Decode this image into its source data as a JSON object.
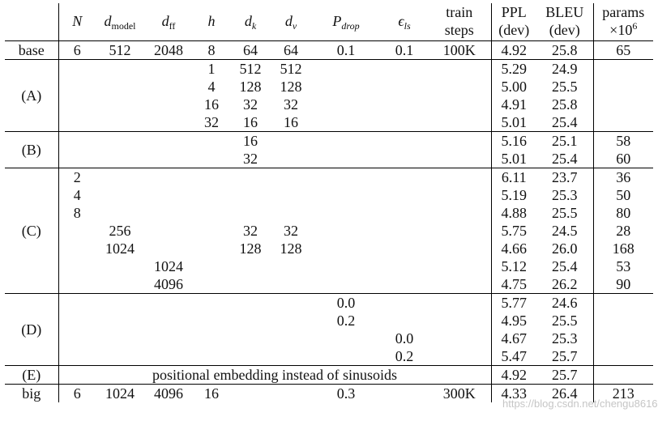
{
  "headers": {
    "N": "N",
    "d_model_base": "d",
    "d_model_sub": "model",
    "d_ff_base": "d",
    "d_ff_sub": "ff",
    "h": "h",
    "d_k_base": "d",
    "d_k_sub": "k",
    "d_v_base": "d",
    "d_v_sub": "v",
    "p_drop_base": "P",
    "p_drop_sub": "drop",
    "eps_ls_base": "ϵ",
    "eps_ls_sub": "ls",
    "train_1": "train",
    "train_2": "steps",
    "ppl_1": "PPL",
    "ppl_2": "(dev)",
    "bleu_1": "BLEU",
    "bleu_2": "(dev)",
    "params_1": "params",
    "params_2": "×10",
    "params_exp": "6"
  },
  "groups": [
    {
      "id": "base",
      "label": "base",
      "rows": [
        {
          "N": "6",
          "d_model": "512",
          "d_ff": "2048",
          "h": "8",
          "d_k": "64",
          "d_v": "64",
          "p_drop": "0.1",
          "eps_ls": "0.1",
          "steps": "100K",
          "ppl": "4.92",
          "bleu": "25.8",
          "params": "65"
        }
      ]
    },
    {
      "id": "A",
      "label": "(A)",
      "rows": [
        {
          "h": "1",
          "d_k": "512",
          "d_v": "512",
          "ppl": "5.29",
          "bleu": "24.9"
        },
        {
          "h": "4",
          "d_k": "128",
          "d_v": "128",
          "ppl": "5.00",
          "bleu": "25.5"
        },
        {
          "h": "16",
          "d_k": "32",
          "d_v": "32",
          "ppl": "4.91",
          "bleu": "25.8"
        },
        {
          "h": "32",
          "d_k": "16",
          "d_v": "16",
          "ppl": "5.01",
          "bleu": "25.4"
        }
      ]
    },
    {
      "id": "B",
      "label": "(B)",
      "rows": [
        {
          "d_k": "16",
          "ppl": "5.16",
          "bleu": "25.1",
          "params": "58"
        },
        {
          "d_k": "32",
          "ppl": "5.01",
          "bleu": "25.4",
          "params": "60"
        }
      ]
    },
    {
      "id": "C",
      "label": "(C)",
      "rows": [
        {
          "N": "2",
          "ppl": "6.11",
          "bleu": "23.7",
          "params": "36"
        },
        {
          "N": "4",
          "ppl": "5.19",
          "bleu": "25.3",
          "params": "50"
        },
        {
          "N": "8",
          "ppl": "4.88",
          "bleu": "25.5",
          "params": "80"
        },
        {
          "d_model": "256",
          "d_k": "32",
          "d_v": "32",
          "ppl": "5.75",
          "bleu": "24.5",
          "params": "28"
        },
        {
          "d_model": "1024",
          "d_k": "128",
          "d_v": "128",
          "ppl": "4.66",
          "bleu": "26.0",
          "params": "168"
        },
        {
          "d_ff": "1024",
          "ppl": "5.12",
          "bleu": "25.4",
          "params": "53"
        },
        {
          "d_ff": "4096",
          "ppl": "4.75",
          "bleu": "26.2",
          "params": "90"
        }
      ]
    },
    {
      "id": "D",
      "label": "(D)",
      "rows": [
        {
          "p_drop": "0.0",
          "ppl": "5.77",
          "bleu": "24.6"
        },
        {
          "p_drop": "0.2",
          "ppl": "4.95",
          "bleu": "25.5"
        },
        {
          "eps_ls": "0.0",
          "ppl": "4.67",
          "bleu": "25.3"
        },
        {
          "eps_ls": "0.2",
          "ppl": "5.47",
          "bleu": "25.7"
        }
      ]
    },
    {
      "id": "E",
      "label": "(E)",
      "span_text": "positional embedding instead of sinusoids",
      "rows": [
        {
          "ppl": "4.92",
          "bleu": "25.7"
        }
      ]
    },
    {
      "id": "big",
      "label": "big",
      "rows": [
        {
          "N": "6",
          "d_model": "1024",
          "d_ff": "4096",
          "h": "16",
          "p_drop": "0.3",
          "steps": "300K",
          "ppl": "4.33",
          "bleu": "26.4",
          "params": "213"
        }
      ]
    }
  ],
  "watermark": "https://blog.csdn.net/chengu8616"
}
